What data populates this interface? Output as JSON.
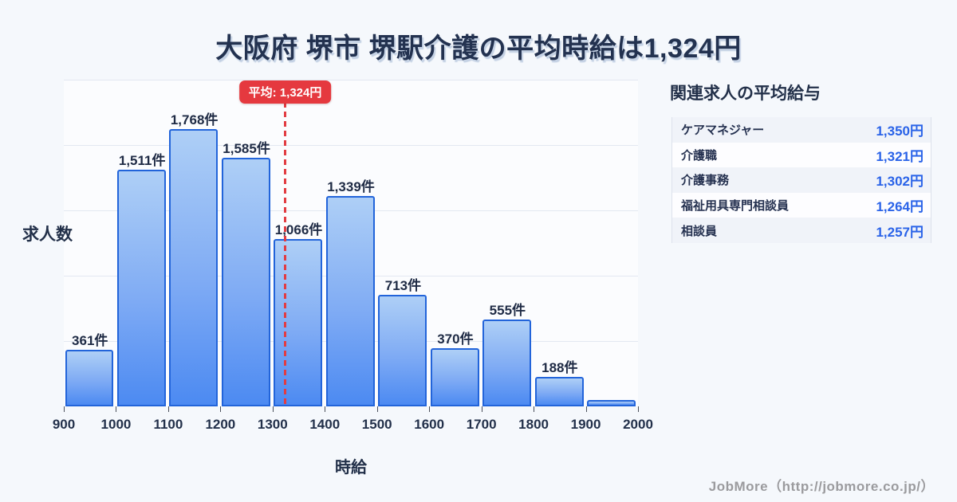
{
  "page": {
    "title": "大阪府 堺市 堺駅介護の平均時給は1,324円",
    "footer_credit": "JobMore（http://jobmore.co.jp/）"
  },
  "chart_data": {
    "type": "bar",
    "title": "大阪府 堺市 堺駅介護の平均時給は1,324円",
    "xlabel": "時給",
    "ylabel": "求人数",
    "bin_edges": [
      900,
      1000,
      1100,
      1200,
      1300,
      1400,
      1500,
      1600,
      1700,
      1800,
      1900,
      2000
    ],
    "x_tick_labels": [
      "900",
      "1000",
      "1100",
      "1200",
      "1300",
      "1400",
      "1500",
      "1600",
      "1700",
      "1800",
      "1900",
      "2000"
    ],
    "values": [
      361,
      1511,
      1768,
      1585,
      1066,
      1339,
      713,
      370,
      555,
      188,
      40
    ],
    "bar_labels": [
      "361件",
      "1,511件",
      "1,768件",
      "1,585件",
      "1,066件",
      "1,339件",
      "713件",
      "370件",
      "555件",
      "188件",
      ""
    ],
    "average_value": 1324,
    "average_label": "平均: 1,324円",
    "ylim": [
      0,
      2085
    ],
    "grid": "horizontal",
    "legend": "none"
  },
  "side_panel": {
    "heading": "関連求人の平均給与",
    "rows": [
      {
        "label": "ケアマネジャー",
        "value": "1,350円"
      },
      {
        "label": "介護職",
        "value": "1,321円"
      },
      {
        "label": "介護事務",
        "value": "1,302円"
      },
      {
        "label": "福祉用具専門相談員",
        "value": "1,264円"
      },
      {
        "label": "相談員",
        "value": "1,257円"
      }
    ]
  },
  "colors": {
    "page_bg": "#f5f8fc",
    "navy_text": "#223049",
    "bar_border": "#2264da",
    "bar_fill_top": "#aecff6",
    "bar_fill_bottom": "#4c8af2",
    "accent_red": "#e5393f",
    "value_blue": "#2a63e8",
    "gridline": "#e3e8f1",
    "footer_gray": "#9b9b9e"
  }
}
